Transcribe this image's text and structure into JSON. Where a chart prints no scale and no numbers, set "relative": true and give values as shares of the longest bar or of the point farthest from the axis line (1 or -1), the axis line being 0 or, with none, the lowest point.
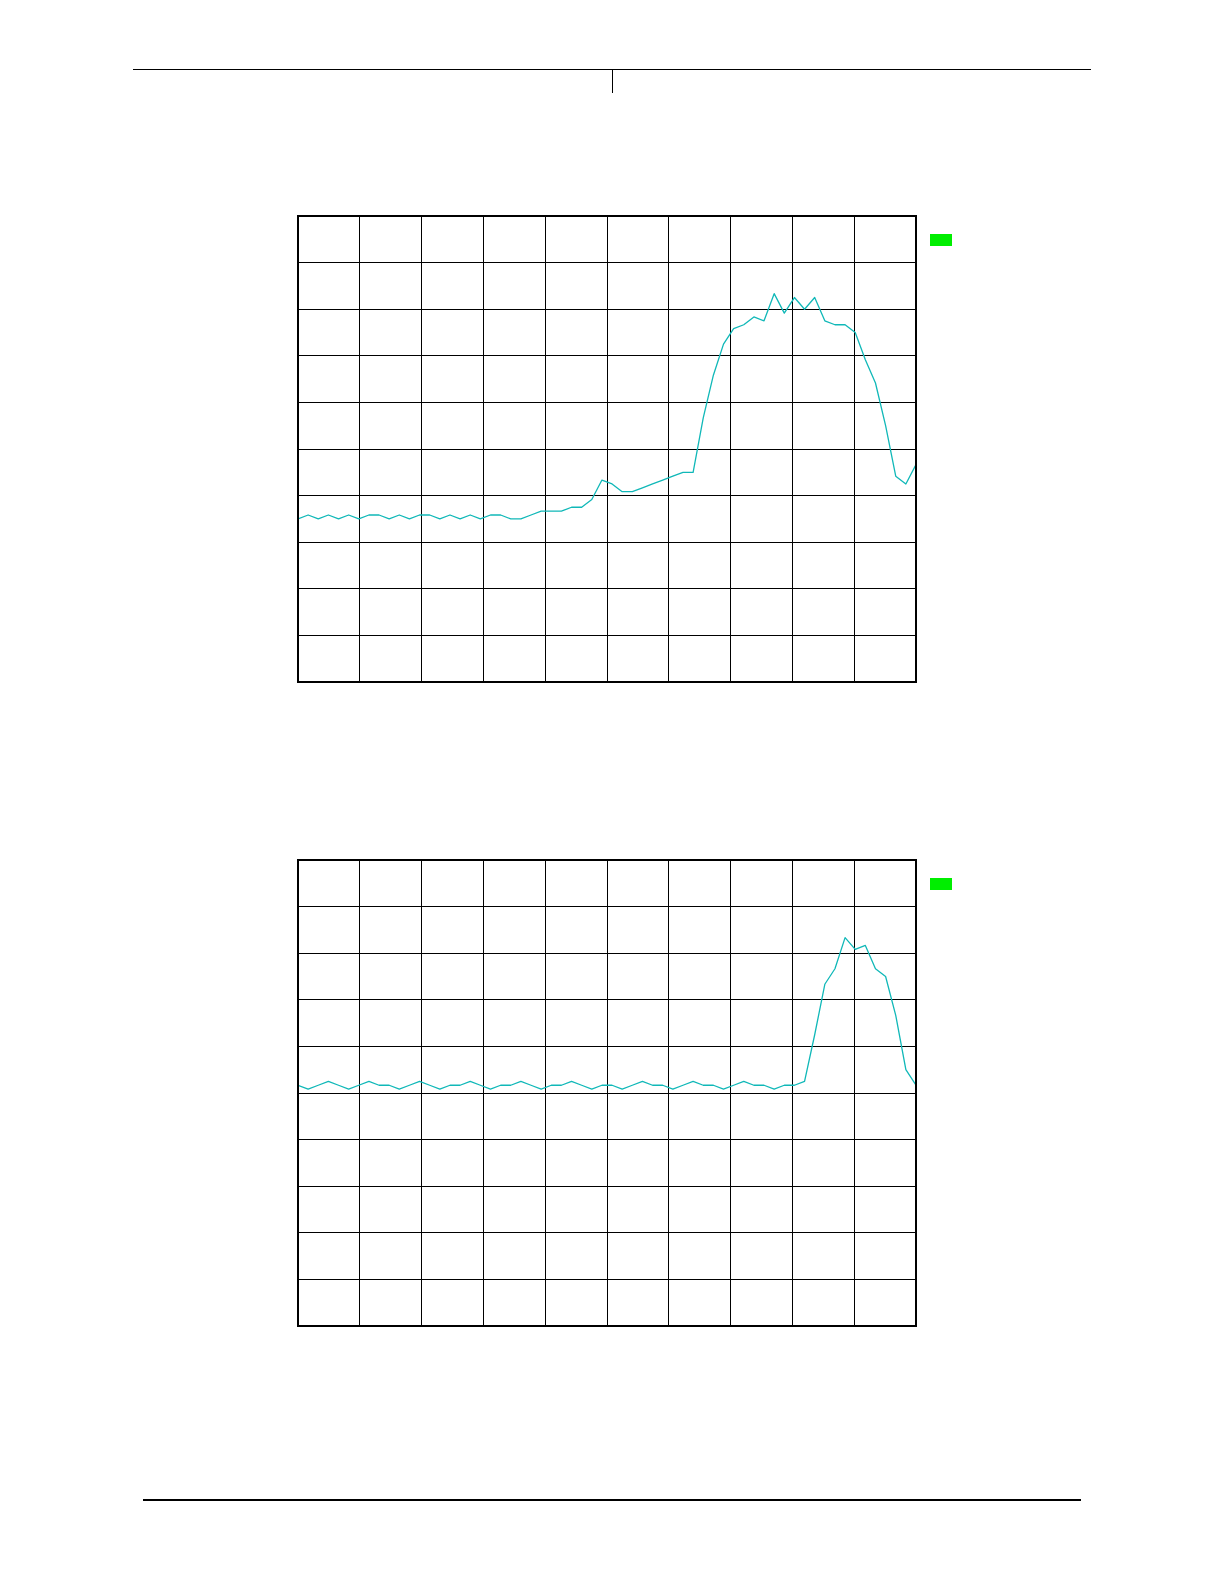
{
  "chart_data": [
    {
      "type": "line",
      "relative": true,
      "grid": true,
      "legend": false,
      "marker": "none",
      "line_style": "solid",
      "categories": [
        null,
        null,
        null,
        null,
        null,
        null,
        null,
        null,
        null,
        null,
        null,
        null,
        null,
        null,
        null,
        null,
        null,
        null,
        null,
        null,
        null,
        null,
        null,
        null,
        null,
        null,
        null,
        null,
        null,
        null,
        null,
        null,
        null,
        null,
        null,
        null,
        null,
        null,
        null,
        null,
        null,
        null,
        null,
        null,
        null,
        null,
        null,
        null,
        null,
        null,
        null,
        null,
        null,
        null,
        null,
        null,
        null,
        null,
        null,
        null,
        null,
        null
      ],
      "series": [
        {
          "color": "#10b8b8",
          "values": [
            0.42,
            0.43,
            0.42,
            0.43,
            0.42,
            0.43,
            0.42,
            0.43,
            0.43,
            0.42,
            0.43,
            0.42,
            0.43,
            0.43,
            0.42,
            0.43,
            0.42,
            0.43,
            0.42,
            0.43,
            0.43,
            0.42,
            0.42,
            0.43,
            0.44,
            0.44,
            0.44,
            0.45,
            0.45,
            0.47,
            0.52,
            0.51,
            0.49,
            0.49,
            0.5,
            0.51,
            0.52,
            0.53,
            0.54,
            0.54,
            0.68,
            0.79,
            0.87,
            0.91,
            0.92,
            0.94,
            0.93,
            1.0,
            0.95,
            0.99,
            0.96,
            0.99,
            0.93,
            0.92,
            0.92,
            0.9,
            0.83,
            0.77,
            0.66,
            0.53,
            0.51,
            0.56
          ]
        }
      ]
    },
    {
      "type": "line",
      "relative": true,
      "grid": true,
      "legend": false,
      "marker": "none",
      "line_style": "solid",
      "categories": [
        null,
        null,
        null,
        null,
        null,
        null,
        null,
        null,
        null,
        null,
        null,
        null,
        null,
        null,
        null,
        null,
        null,
        null,
        null,
        null,
        null,
        null,
        null,
        null,
        null,
        null,
        null,
        null,
        null,
        null,
        null,
        null,
        null,
        null,
        null,
        null,
        null,
        null,
        null,
        null,
        null,
        null,
        null,
        null,
        null,
        null,
        null,
        null,
        null,
        null,
        null,
        null,
        null,
        null,
        null,
        null,
        null,
        null,
        null,
        null,
        null,
        null
      ],
      "series": [
        {
          "color": "#10b8b8",
          "values": [
            0.62,
            0.61,
            0.62,
            0.63,
            0.62,
            0.61,
            0.62,
            0.63,
            0.62,
            0.62,
            0.61,
            0.62,
            0.63,
            0.62,
            0.61,
            0.62,
            0.62,
            0.63,
            0.62,
            0.61,
            0.62,
            0.62,
            0.63,
            0.62,
            0.61,
            0.62,
            0.62,
            0.63,
            0.62,
            0.61,
            0.62,
            0.62,
            0.61,
            0.62,
            0.63,
            0.62,
            0.62,
            0.61,
            0.62,
            0.63,
            0.62,
            0.62,
            0.61,
            0.62,
            0.63,
            0.62,
            0.62,
            0.61,
            0.62,
            0.62,
            0.63,
            0.75,
            0.88,
            0.92,
            1.0,
            0.97,
            0.98,
            0.92,
            0.9,
            0.8,
            0.66,
            0.62
          ]
        }
      ]
    }
  ]
}
